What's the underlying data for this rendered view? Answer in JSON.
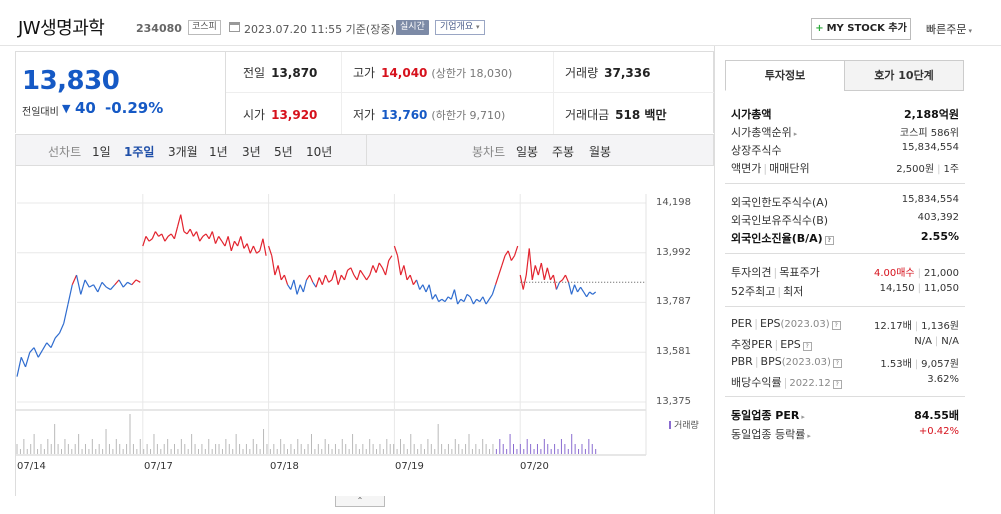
{
  "header": {
    "name": "JW생명과학",
    "code": "234080",
    "market": "코스피",
    "datetime": "2023.07.20 11:55 기준(장중)",
    "realtime": "실시간",
    "company_info": "기업개요",
    "mystock": "MY STOCK 추가",
    "quick_order": "빠른주문"
  },
  "quote": {
    "price": "13,830",
    "diff_label": "전일대비",
    "diff": "40",
    "rate": "-0.29%",
    "prev_label": "전일",
    "prev": "13,870",
    "high_label": "고가",
    "high": "14,040",
    "upper_limit": "(상한가 18,030)",
    "volume_label": "거래량",
    "volume": "37,336",
    "open_label": "시가",
    "open": "13,920",
    "low_label": "저가",
    "low": "13,760",
    "lower_limit": "(하한가 9,710)",
    "amount_label": "거래대금",
    "amount": "518 백만"
  },
  "tabs": {
    "line_label": "선차트",
    "periods": [
      "1일",
      "1주일",
      "3개월",
      "1년",
      "3년",
      "5년",
      "10년"
    ],
    "active_period": "1주일",
    "candle_label": "봉차트",
    "candles": [
      "일봉",
      "주봉",
      "월봉"
    ]
  },
  "chart_data": {
    "type": "line",
    "y_ticks": [
      "14,198",
      "13,992",
      "13,787",
      "13,581",
      "13,375"
    ],
    "ylim": [
      13375,
      14198
    ],
    "reference_price": 13870,
    "x_ticks": [
      "07/14",
      "07/17",
      "07/18",
      "07/19",
      "07/20"
    ],
    "volume_label": "거래량",
    "colors": {
      "up": "#e2232e",
      "down": "#2f6ccf",
      "volume": "#8a6cd0",
      "grid": "#e8e8e8"
    },
    "series": [
      {
        "day": "07/14",
        "values": [
          13480,
          13560,
          13520,
          13580,
          13600,
          13560,
          13590,
          13620,
          13600,
          13640,
          13660,
          13700,
          13780,
          13860,
          13900,
          13820,
          13880,
          13850,
          13860,
          13830,
          13870,
          13850,
          13840,
          13860,
          13880,
          13850,
          13870,
          13860,
          13880,
          13870
        ]
      },
      {
        "day": "07/17",
        "values": [
          14020,
          14060,
          14040,
          14050,
          14080,
          14060,
          14070,
          14040,
          14060,
          14070,
          14050,
          14100,
          14150,
          14080,
          14070,
          14090,
          14060,
          14080,
          14040,
          14060,
          14070,
          14050,
          14080,
          14030,
          14060,
          14040,
          14020,
          14060,
          14000,
          14040,
          14020,
          14060,
          14010,
          14030,
          13990,
          14020,
          13990,
          14000,
          14050,
          13980
        ]
      },
      {
        "day": "07/18",
        "values": [
          14020,
          13980,
          13900,
          13940,
          13880,
          13900,
          13860,
          13840,
          13880,
          13820,
          13860,
          13830,
          13880,
          13900,
          13870,
          13850,
          13890,
          13860,
          13900,
          13870,
          13880,
          13920,
          13860,
          13900,
          13880,
          13920,
          13930,
          13900,
          13880,
          13920,
          13900,
          13880,
          13900,
          13940,
          13910,
          13950,
          13930,
          13900,
          13960,
          13980
        ]
      },
      {
        "day": "07/19",
        "values": [
          14020,
          13980,
          13900,
          13940,
          13880,
          13900,
          13860,
          13880,
          13840,
          13860,
          13830,
          13860,
          13800,
          13820,
          13790,
          13800,
          13790,
          13810,
          13800,
          13840,
          13780,
          13800,
          13790,
          13820,
          13810,
          13780,
          13800,
          13790,
          13810,
          13780,
          13800,
          13820,
          13860,
          13900,
          13940,
          13980,
          14000,
          13960,
          13980,
          14020
        ]
      },
      {
        "day": "07/20",
        "values": [
          13900,
          13840,
          13900,
          14010,
          13880,
          13940,
          13900,
          13950,
          13880,
          13930,
          13880,
          13900,
          13840,
          13870,
          13880,
          13900,
          13870,
          13820,
          13860,
          13830,
          13850,
          13830,
          13810,
          13830,
          13820,
          13830
        ]
      }
    ],
    "volume": [
      2,
      1,
      3,
      1,
      2,
      4,
      1,
      2,
      1,
      3,
      2,
      6,
      2,
      1,
      3,
      2,
      1,
      2,
      4,
      1,
      2,
      1,
      3,
      1,
      2,
      1,
      5,
      2,
      1,
      3,
      2,
      1,
      2,
      8,
      2,
      1,
      3,
      1,
      2,
      1,
      4,
      2,
      1,
      2,
      3,
      1,
      2,
      1,
      3,
      2,
      1,
      4,
      2,
      1,
      2,
      1,
      3,
      1,
      2,
      2,
      1,
      3,
      2,
      1,
      4,
      2,
      1,
      2,
      1,
      3,
      2,
      1,
      5,
      2,
      1,
      2,
      1,
      3,
      2,
      1,
      2,
      1,
      3,
      2,
      1,
      2,
      4,
      1,
      2,
      1,
      3,
      2,
      1,
      2,
      1,
      3,
      2,
      1,
      4,
      2,
      1,
      2,
      1,
      3,
      2,
      1,
      2,
      1,
      3,
      2,
      2,
      1,
      3,
      2,
      1,
      4,
      2,
      1,
      2,
      1,
      3,
      2,
      1,
      6,
      2,
      1,
      2,
      1,
      3,
      2,
      1,
      2,
      4,
      1,
      2,
      1,
      3,
      2,
      1,
      2,
      1,
      3,
      2,
      1,
      4,
      2,
      1,
      2,
      1,
      3,
      2,
      1,
      2,
      1,
      3,
      2,
      1,
      2,
      1,
      3,
      2,
      1,
      4,
      2,
      1,
      2,
      1,
      3,
      2,
      1
    ]
  },
  "panel": {
    "tab_invest": "투자정보",
    "tab_hoga": "호가 10단계",
    "market_cap_label": "시가총액",
    "market_cap": "2,188억원",
    "rank_label": "시가총액순위",
    "rank": "코스피 586위",
    "shares_label": "상장주식수",
    "shares": "15,834,554",
    "face_label": "액면가",
    "trade_unit_label": "매매단위",
    "face": "2,500원",
    "trade_unit": "1주",
    "foreign_limit_label": "외국인한도주식수(A)",
    "foreign_limit": "15,834,554",
    "foreign_hold_label": "외국인보유주식수(B)",
    "foreign_hold": "403,392",
    "foreign_rate_label": "외국인소진율(B/A)",
    "foreign_rate": "2.55%",
    "opinion_label": "투자의견",
    "target_label": "목표주가",
    "opinion": "4.00매수",
    "target": "21,000",
    "w52_high_label": "52주최고",
    "w52_low_label": "최저",
    "w52_high": "14,150",
    "w52_low": "11,050",
    "per_label": "PER",
    "eps_label": "EPS",
    "eps_year": "(2023.03)",
    "per": "12.17배",
    "eps": "1,136원",
    "est_per_label": "추정PER",
    "est_eps_label": "EPS",
    "est_per": "N/A",
    "est_eps": "N/A",
    "pbr_label": "PBR",
    "bps_label": "BPS",
    "bps_year": "(2023.03)",
    "pbr": "1.53배",
    "bps": "9,057원",
    "div_label": "배당수익률",
    "div_year": "2022.12",
    "div": "3.62%",
    "sector_per_label": "동일업종 PER",
    "sector_per": "84.55배",
    "sector_rate_label": "동일업종 등락률",
    "sector_rate": "+0.42%"
  }
}
